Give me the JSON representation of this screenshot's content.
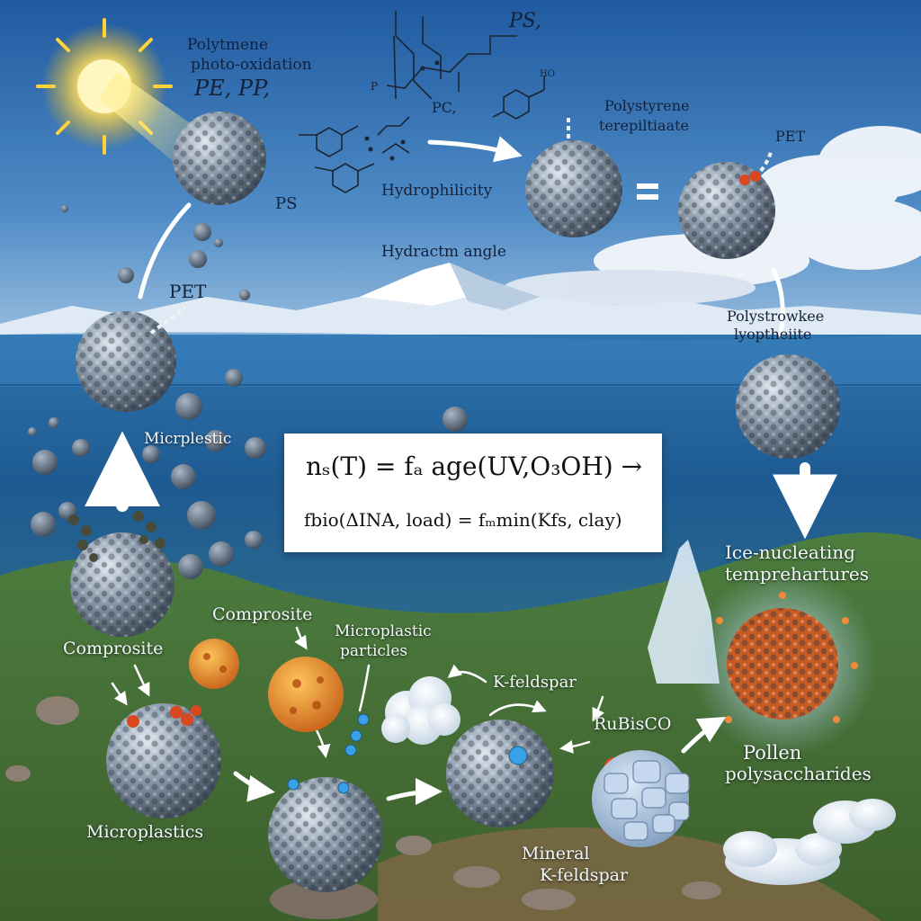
{
  "labels": {
    "polytmene": "Polytmene",
    "photo_oxidation": "photo-oxidation",
    "pe_pp": "PE,  PP,",
    "ps_top": "PS,",
    "p_chem": "P",
    "pc": "PC,",
    "hydrophilicity": "Hydrophilicity",
    "ps_left": "PS",
    "polystyrene": "Polystyrene",
    "terephthalate": "terepiltiaate",
    "pet_right": "PET",
    "hydraction_angle": "Hydractm angle",
    "pet_left": "PET",
    "polystrowkee": "Polystrowkee",
    "lyopthenite": "lyoptheiite",
    "microplastic_mid": "Micrplestic",
    "ice_nucleating": "Ice-nucleating",
    "temperatures": "temprehartures",
    "comprosite_mid": "Comprosite",
    "microplastic_particles_1": "Microplastic",
    "microplastic_particles_2": "particles",
    "comprosite_left": "Comprosite",
    "k_feldspar": "K-feldspar",
    "rubisco": "RuBisCO",
    "pollen": "Pollen",
    "polysaccharides": "polysaccharides",
    "microplastics": "Microplastics",
    "mineral": "Mineral",
    "k_feldspar_bottom": "K-feldspar",
    "ho": "HO"
  },
  "formula": {
    "line1": "nₛ(T) = fₐ age(UV,O₃OH) →",
    "line2": "fbio(ΔINA, load) = fₘmin(Kfs, clay)"
  },
  "colors": {
    "sky_top": "#2b6cb0",
    "sky_bottom": "#a9c9e6",
    "sea": "#1f5f96",
    "grass": "#4f7a3a",
    "sun": "#ffd23a",
    "particle": "#8c98a6",
    "pollen": "#e08a28",
    "tag_red": "#d9481f",
    "bead_blue": "#3aa0e6"
  },
  "icons": [
    "sun-icon",
    "microplastic-particle-icon",
    "pollen-grain-icon",
    "mineral-cluster-icon",
    "flow-arrow-icon",
    "molecule-structure-icon"
  ]
}
